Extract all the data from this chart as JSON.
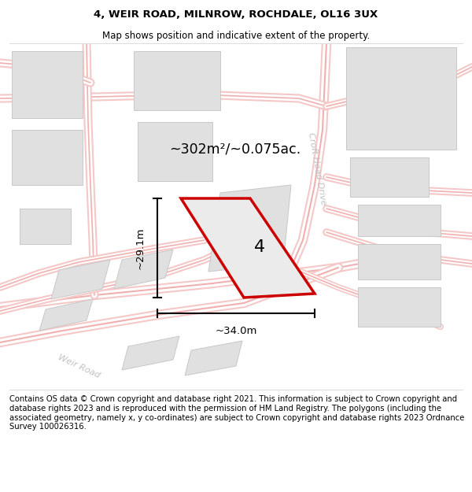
{
  "title_line1": "4, WEIR ROAD, MILNROW, ROCHDALE, OL16 3UX",
  "title_line2": "Map shows position and indicative extent of the property.",
  "footer_text": "Contains OS data © Crown copyright and database right 2021. This information is subject to Crown copyright and database rights 2023 and is reproduced with the permission of HM Land Registry. The polygons (including the associated geometry, namely x, y co-ordinates) are subject to Crown copyright and database rights 2023 Ordnance Survey 100026316.",
  "title_fontsize": 9.5,
  "subtitle_fontsize": 8.5,
  "footer_fontsize": 7.2,
  "area_label": "~302m²/~0.075ac.",
  "dim_h_label": "~29.1m",
  "dim_w_label": "~34.0m",
  "road_color": "#f0b0b0",
  "building_face": "#e0e0e0",
  "building_edge": "#c8c8c8",
  "road_label_color": "#c0c0c0",
  "plot_face": "#ebebeb",
  "plot_edge": "#cc0000"
}
